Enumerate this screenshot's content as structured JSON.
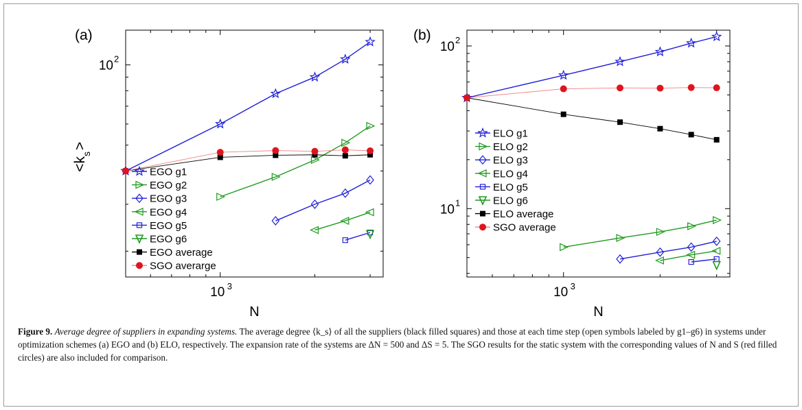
{
  "colors": {
    "blue": "#1f1fd6",
    "green": "#1f9a1f",
    "black": "#000000",
    "red": "#e0141e",
    "pink": "#f08080"
  },
  "chart_data": [
    {
      "type": "line",
      "panel_label": "(a)",
      "xlabel": "N",
      "ylabel": "<k",
      "ylabel_sub": "s",
      "ylabel_close": ">",
      "xscale": "log",
      "yscale": "log",
      "xlim": [
        500,
        3300
      ],
      "ylim": [
        16,
        135
      ],
      "xticks": [
        {
          "value": 1000,
          "base": "10",
          "exp": "3"
        }
      ],
      "yticks": [
        {
          "value": 100,
          "base": "10",
          "exp": "2"
        }
      ],
      "legend_position": "center-left",
      "series": [
        {
          "name": "EGO g1",
          "color": "#1f1fd6",
          "marker": "star",
          "x": [
            500,
            1000,
            1500,
            2000,
            2500,
            3000
          ],
          "y": [
            40,
            60,
            78,
            90,
            105,
            122
          ]
        },
        {
          "name": "EGO g2",
          "color": "#1f9a1f",
          "marker": "triangle-right",
          "x": [
            1000,
            1500,
            2000,
            2500,
            3000
          ],
          "y": [
            32,
            38,
            44,
            51,
            59
          ]
        },
        {
          "name": "EGO g3",
          "color": "#1f1fd6",
          "marker": "diamond",
          "x": [
            1500,
            2000,
            2500,
            3000
          ],
          "y": [
            26,
            30,
            33,
            37
          ]
        },
        {
          "name": "EGO g4",
          "color": "#1f9a1f",
          "marker": "triangle-left",
          "x": [
            2000,
            2500,
            3000
          ],
          "y": [
            24,
            26,
            28
          ]
        },
        {
          "name": "EGO g5",
          "color": "#1f1fd6",
          "marker": "square-open",
          "x": [
            2500,
            3000
          ],
          "y": [
            22,
            23.5
          ]
        },
        {
          "name": "EGO g6",
          "color": "#1f9a1f",
          "marker": "triangle-down",
          "x": [
            3000
          ],
          "y": [
            23.2
          ]
        },
        {
          "name": "EGO average",
          "color": "#000000",
          "marker": "square-filled",
          "x": [
            500,
            1000,
            1500,
            2000,
            2500,
            3000
          ],
          "y": [
            40,
            45,
            45.8,
            46,
            45.6,
            46
          ]
        },
        {
          "name": "SGO averarge",
          "color": "#f08080",
          "marker": "circle-filled",
          "marker_color": "#e0141e",
          "x": [
            500,
            1000,
            1500,
            2000,
            2500,
            3000
          ],
          "y": [
            40,
            47,
            47.7,
            47.4,
            48,
            47.6
          ]
        }
      ]
    },
    {
      "type": "line",
      "panel_label": "(b)",
      "xlabel": "N",
      "xscale": "log",
      "yscale": "log",
      "xlim": [
        500,
        3300
      ],
      "ylim": [
        3.8,
        125
      ],
      "xticks": [
        {
          "value": 1000,
          "base": "10",
          "exp": "3"
        }
      ],
      "yticks": [
        {
          "value": 10,
          "base": "10",
          "exp": "1"
        },
        {
          "value": 100,
          "base": "10",
          "exp": "2"
        }
      ],
      "legend_position": "center-left",
      "series": [
        {
          "name": "ELO g1",
          "color": "#1f1fd6",
          "marker": "star",
          "x": [
            500,
            1000,
            1500,
            2000,
            2500,
            3000
          ],
          "y": [
            48,
            66,
            80,
            92,
            104,
            114
          ]
        },
        {
          "name": "ELO g2",
          "color": "#1f9a1f",
          "marker": "triangle-right",
          "x": [
            1000,
            1500,
            2000,
            2500,
            3000
          ],
          "y": [
            5.8,
            6.6,
            7.2,
            7.8,
            8.5
          ]
        },
        {
          "name": "ELO g3",
          "color": "#1f1fd6",
          "marker": "diamond",
          "x": [
            1500,
            2000,
            2500,
            3000
          ],
          "y": [
            4.9,
            5.4,
            5.8,
            6.3
          ]
        },
        {
          "name": "ELO g4",
          "color": "#1f9a1f",
          "marker": "triangle-left",
          "x": [
            2000,
            2500,
            3000
          ],
          "y": [
            4.8,
            5.2,
            5.5
          ]
        },
        {
          "name": "ELO g5",
          "color": "#1f1fd6",
          "marker": "square-open",
          "x": [
            2500,
            3000
          ],
          "y": [
            4.7,
            4.9
          ]
        },
        {
          "name": "ELO g6",
          "color": "#1f9a1f",
          "marker": "triangle-down",
          "x": [
            3000
          ],
          "y": [
            4.5
          ]
        },
        {
          "name": "ELO average",
          "color": "#000000",
          "marker": "square-filled",
          "x": [
            500,
            1000,
            1500,
            2000,
            2500,
            3000
          ],
          "y": [
            48,
            38,
            34,
            31,
            28.5,
            26.5
          ]
        },
        {
          "name": "SGO average",
          "color": "#f08080",
          "marker": "circle-filled",
          "marker_color": "#e0141e",
          "x": [
            500,
            1000,
            1500,
            2000,
            2500,
            3000
          ],
          "y": [
            48,
            54.5,
            55.2,
            55,
            55.5,
            55.3
          ]
        }
      ]
    }
  ],
  "caption": {
    "label": "Figure 9.",
    "title": "Average degree of suppliers in expanding systems.",
    "line1": "The average degree ⟨k_s⟩ of all the suppliers (black filled squares) and those at each time step (open symbols labeled by g1–g6) in systems under optimization schemes (a) EGO and (b) ELO, respectively. The expansion rate of the systems are ΔN = 500 and ΔS = 5. The SGO results for the static system with the corresponding values of N and S (red filled circles) are also included for comparison."
  }
}
